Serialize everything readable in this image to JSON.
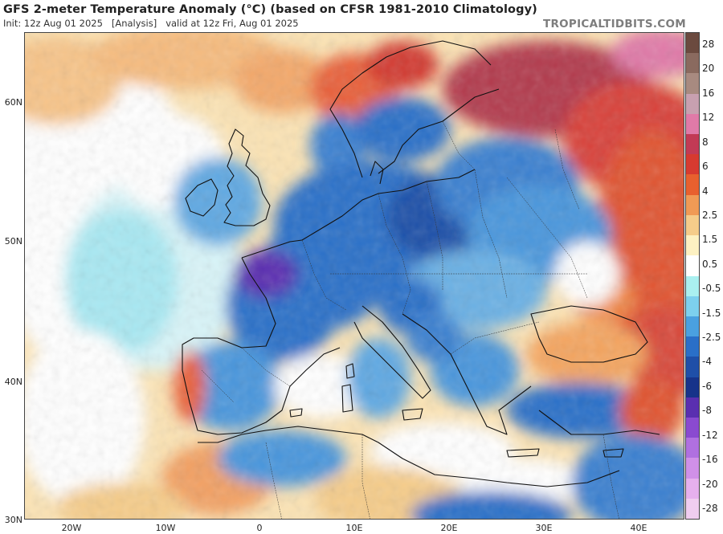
{
  "header": {
    "title": "GFS 2-meter Temperature Anomaly (°C) (based on CFSR 1981-2010 Climatology)",
    "subtitle": "Init: 12z Aug 01 2025   [Analysis]   valid at 12z Fri, Aug 01 2025",
    "brand": "TROPICALTIDBITS.COM"
  },
  "map": {
    "lat_labels": [
      "60N",
      "50N",
      "40N",
      "30N"
    ],
    "lon_labels": [
      "20W",
      "10W",
      "0",
      "10E",
      "20E",
      "30E",
      "40E"
    ],
    "legend_labels": [
      "28",
      "20",
      "16",
      "12",
      "8",
      "6",
      "4",
      "2.5",
      "1.5",
      "0.5",
      "-0.5",
      "-1.5",
      "-2.5",
      "-4",
      "-6",
      "-8",
      "-12",
      "-16",
      "-20",
      "-28"
    ],
    "legend_colors": [
      "#6b4a3f",
      "#8a6a5f",
      "#a88a80",
      "#c8a0b0",
      "#e07aa8",
      "#c23a55",
      "#d73a30",
      "#e8602e",
      "#f09a55",
      "#f5cc8a",
      "#fdf1c2",
      "#ffffff",
      "#aaf0f0",
      "#7dd0ee",
      "#4aa0e0",
      "#2a6fc8",
      "#1f4fa8",
      "#17338a",
      "#5a2fb0",
      "#8a4ad0",
      "#b070e0",
      "#d090e8",
      "#e6b0ee",
      "#f0cdf0"
    ],
    "land_icons": [
      "coastline-icon",
      "border-icon"
    ]
  }
}
